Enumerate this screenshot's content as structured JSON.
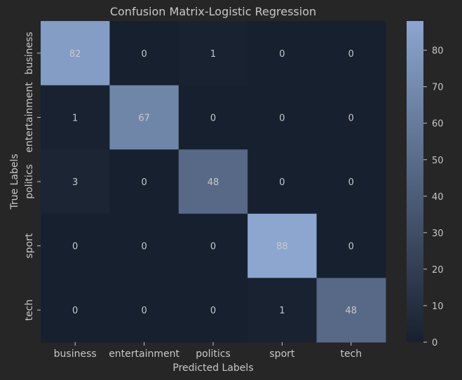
{
  "chart_data": {
    "type": "heatmap",
    "title": "Confusion Matrix-Logistic Regression",
    "xlabel": "Predicted Labels",
    "ylabel": "True Labels",
    "x_categories": [
      "business",
      "entertainment",
      "politics",
      "sport",
      "tech"
    ],
    "y_categories": [
      "business",
      "entertainment",
      "politics",
      "sport",
      "tech"
    ],
    "values": [
      [
        82,
        0,
        1,
        0,
        0
      ],
      [
        1,
        67,
        0,
        0,
        0
      ],
      [
        3,
        0,
        48,
        0,
        0
      ],
      [
        0,
        0,
        0,
        88,
        0
      ],
      [
        0,
        0,
        0,
        1,
        48
      ]
    ],
    "colorbar": {
      "min": 0,
      "max": 88,
      "ticks": [
        0,
        10,
        20,
        30,
        40,
        50,
        60,
        70,
        80
      ]
    },
    "colors": {
      "low": "#17202e",
      "high": "#8ca6cf",
      "background": "#262626",
      "text": "#c8c8c8"
    }
  }
}
